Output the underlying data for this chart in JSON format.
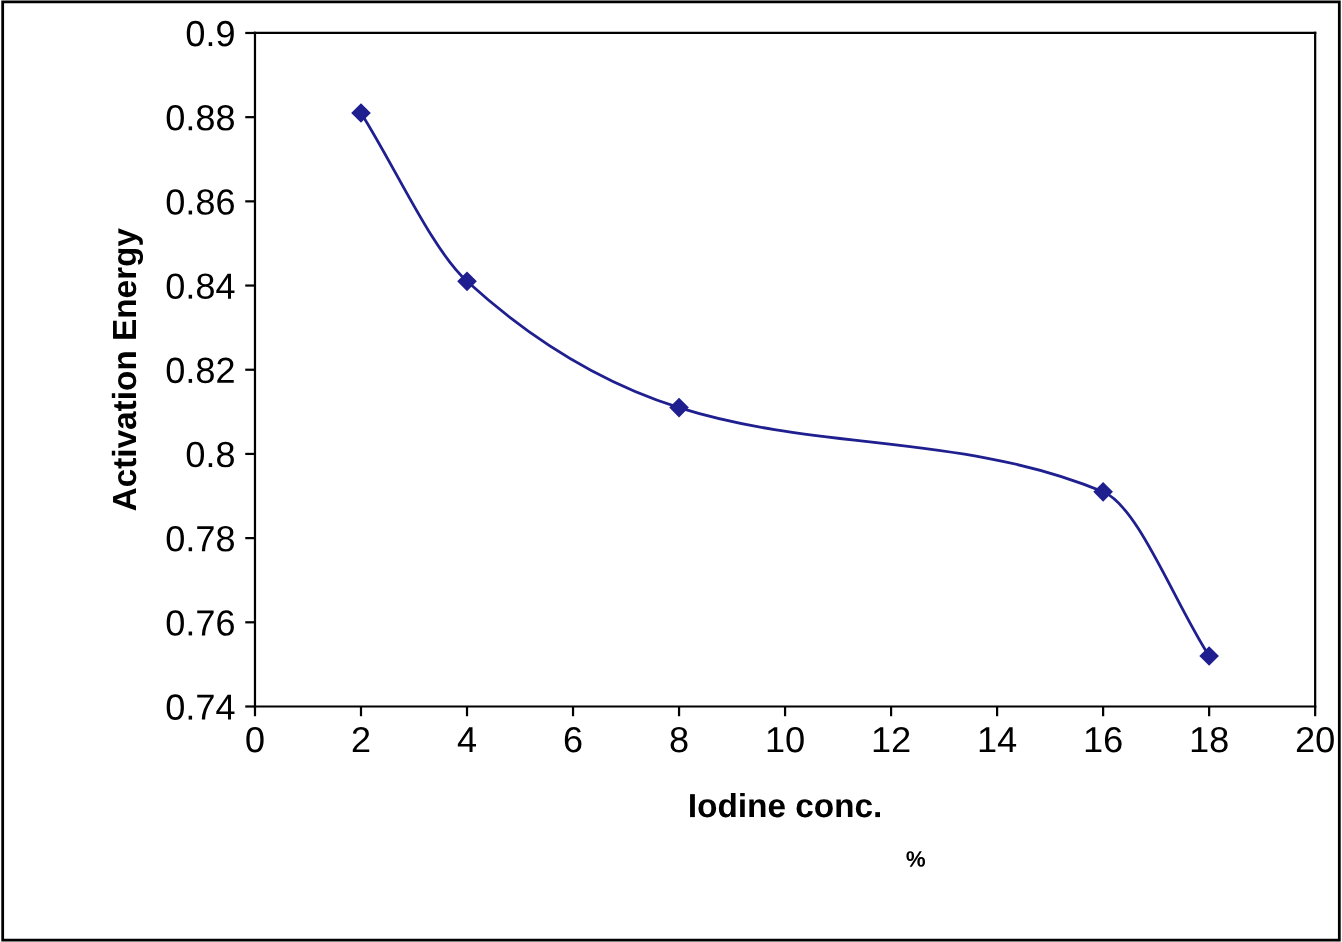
{
  "chart_data": {
    "type": "line",
    "xlabel": "Iodine conc.",
    "ylabel": "Activation Energy",
    "annotations": [
      "%"
    ],
    "x": [
      2,
      4,
      8,
      16,
      18
    ],
    "series": [
      {
        "color": "#1f1f8f",
        "values": [
          0.881,
          0.841,
          0.811,
          0.791,
          0.752
        ]
      }
    ],
    "xlim": [
      0,
      20
    ],
    "xticks": [
      0,
      2,
      4,
      6,
      8,
      10,
      12,
      14,
      16,
      18,
      20
    ],
    "ylim": [
      0.74,
      0.9
    ],
    "yticks": [
      0.74,
      0.76,
      0.78,
      0.8,
      0.82,
      0.84,
      0.86,
      0.88,
      0.9
    ],
    "marker": "diamond",
    "line_style": "solid",
    "grid": false,
    "legend": false
  }
}
